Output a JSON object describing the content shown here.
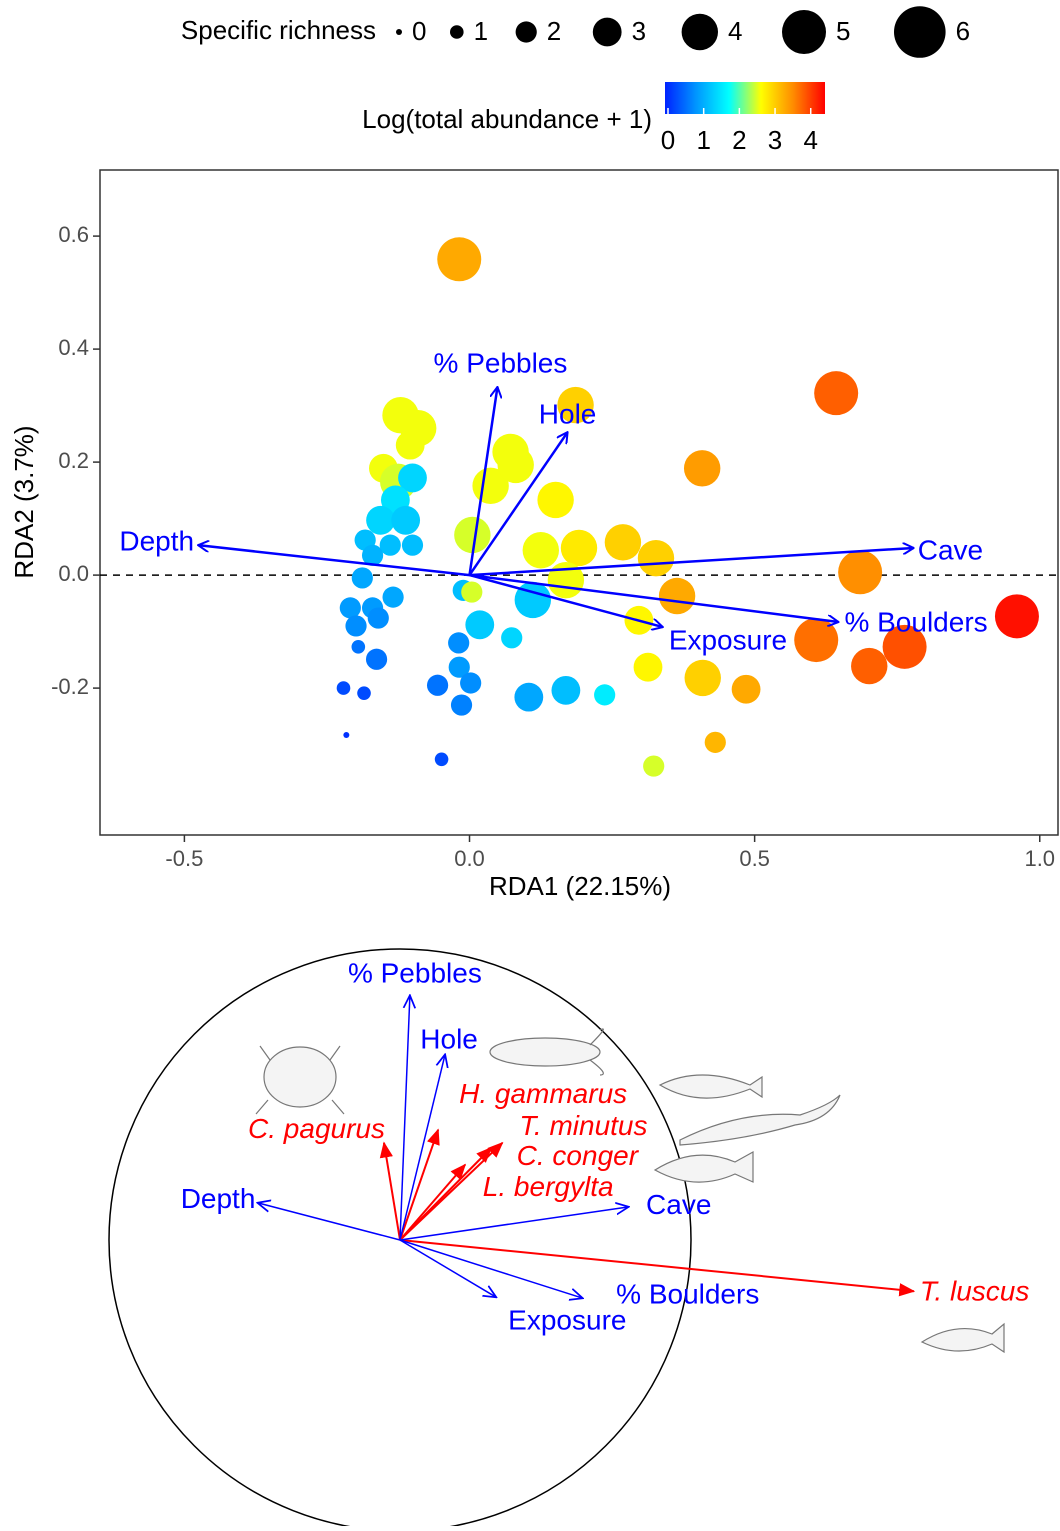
{
  "chart_data": [
    {
      "type": "scatter",
      "xlabel": "RDA1 (22.15%)",
      "ylabel": "RDA2 (3.7%)",
      "xlim": [
        -0.648,
        1.032
      ],
      "ylim": [
        -0.46,
        0.717
      ],
      "xticks": [
        -0.5,
        {
          "value": 0,
          "label": "0.0"
        },
        0.5,
        {
          "value": 1,
          "label": "1.0"
        }
      ],
      "yticks": [
        -0.2,
        {
          "value": 0,
          "label": "0.0"
        },
        0.2,
        0.4,
        0.6
      ],
      "size_legend": {
        "title": "Specific richness",
        "values": [
          0,
          1,
          2,
          3,
          4,
          5,
          6
        ]
      },
      "color_legend": {
        "title": "Log(total abundance + 1)",
        "lim": [
          0,
          4.4
        ],
        "ticks": [
          0,
          1,
          2,
          3,
          4
        ],
        "colors": [
          "#0022ff",
          "#0099ff",
          "#00ffff",
          "#ffff00",
          "#ff8c00",
          "#ff0000"
        ]
      },
      "points": {
        "x": [
          -0.018,
          0.643,
          0.408,
          0.186,
          -0.121,
          -0.09,
          -0.104,
          -0.151,
          -0.125,
          -0.1,
          -0.13,
          -0.156,
          -0.112,
          -0.183,
          -0.139,
          -0.1,
          -0.17,
          -0.188,
          -0.134,
          -0.209,
          -0.17,
          -0.199,
          -0.16,
          -0.195,
          -0.163,
          -0.221,
          -0.185,
          -0.216,
          -0.049,
          -0.056,
          -0.019,
          -0.018,
          0.002,
          -0.014,
          0.018,
          -0.011,
          0.004,
          0.074,
          0.111,
          0.104,
          0.169,
          0.237,
          0.005,
          0.037,
          0.072,
          0.081,
          0.151,
          0.125,
          0.192,
          0.169,
          0.269,
          0.327,
          0.364,
          0.297,
          0.313,
          0.409,
          0.485,
          0.431,
          0.323,
          0.685,
          0.608,
          0.701,
          0.763,
          0.96
        ],
        "y": [
          0.559,
          0.322,
          0.189,
          0.301,
          0.283,
          0.26,
          0.23,
          0.189,
          0.165,
          0.172,
          0.133,
          0.097,
          0.097,
          0.062,
          0.053,
          0.053,
          0.035,
          -0.005,
          -0.039,
          -0.058,
          -0.058,
          -0.09,
          -0.076,
          -0.127,
          -0.149,
          -0.2,
          -0.209,
          -0.283,
          -0.326,
          -0.195,
          -0.12,
          -0.163,
          -0.191,
          -0.23,
          -0.088,
          -0.027,
          -0.03,
          -0.111,
          -0.044,
          -0.216,
          -0.204,
          -0.212,
          0.071,
          0.158,
          0.218,
          0.195,
          0.133,
          0.044,
          0.048,
          -0.009,
          0.058,
          0.03,
          -0.037,
          -0.08,
          -0.163,
          -0.182,
          -0.202,
          -0.296,
          -0.338,
          0.005,
          -0.115,
          -0.161,
          -0.127,
          -0.073
        ],
        "size": [
          5,
          5,
          4,
          4,
          4,
          4,
          3,
          3,
          4,
          3,
          3,
          3,
          3,
          2,
          2,
          2,
          2,
          2,
          2,
          2,
          2,
          2,
          2,
          1,
          2,
          1,
          1,
          0,
          1,
          2,
          2,
          2,
          2,
          2,
          3,
          2,
          2,
          2,
          4,
          3,
          3,
          2,
          4,
          4,
          4,
          4,
          4,
          4,
          4,
          4,
          4,
          4,
          4,
          3,
          3,
          4,
          3,
          2,
          2,
          5,
          5,
          4,
          5,
          5
        ],
        "color_value": [
          3.3,
          3.8,
          3.4,
          3.0,
          2.6,
          2.6,
          2.6,
          2.6,
          2.5,
          1.4,
          1.5,
          1.4,
          1.3,
          1.2,
          1.2,
          1.2,
          1.1,
          1.0,
          1.0,
          0.9,
          0.9,
          0.8,
          0.8,
          0.6,
          0.6,
          0.3,
          0.3,
          0.1,
          0.3,
          0.6,
          0.8,
          0.9,
          0.8,
          0.7,
          1.3,
          1.2,
          2.5,
          1.4,
          1.3,
          1.0,
          1.2,
          1.6,
          2.5,
          2.6,
          2.6,
          2.6,
          2.7,
          2.6,
          2.8,
          2.6,
          3.0,
          3.0,
          3.3,
          2.7,
          2.7,
          3.0,
          3.3,
          3.2,
          2.5,
          3.5,
          3.7,
          3.8,
          3.9,
          4.3
        ]
      },
      "arrows": {
        "color": "#0000ff",
        "labels": [
          "Depth",
          "% Pebbles",
          "Hole",
          "Cave",
          "% Boulders",
          "Exposure"
        ],
        "x": [
          -0.476,
          0.049,
          0.172,
          0.779,
          0.647,
          0.339
        ],
        "y": [
          0.053,
          0.333,
          0.253,
          0.048,
          -0.083,
          -0.092
        ]
      }
    },
    {
      "type": "correlation-circle",
      "variables": {
        "color": "#0000ff",
        "labels": [
          "Depth",
          "% Pebbles",
          "Hole",
          "Cave",
          "% Boulders",
          "Exposure"
        ],
        "x": [
          -0.49,
          0.034,
          0.155,
          0.786,
          0.628,
          0.331
        ],
        "y": [
          0.128,
          0.841,
          0.638,
          0.114,
          -0.2,
          -0.197
        ]
      },
      "species": {
        "color": "#ff0000",
        "labels": [
          "C. pagurus",
          "H. gammarus",
          "T. minutus",
          "C. conger",
          "L. bergylta",
          "T. luscus"
        ],
        "x": [
          -0.055,
          0.131,
          0.352,
          0.314,
          0.224,
          1.766
        ],
        "y": [
          0.334,
          0.379,
          0.334,
          0.317,
          0.259,
          -0.176
        ]
      }
    }
  ]
}
